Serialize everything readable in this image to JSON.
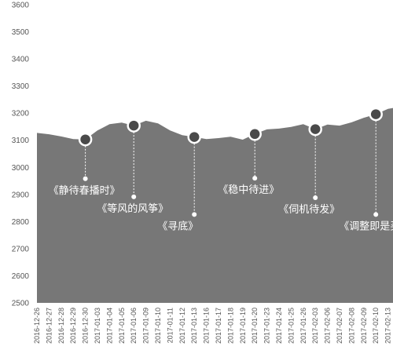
{
  "chart_data": {
    "type": "area",
    "ylim": [
      2500,
      3600
    ],
    "yticks": [
      2500,
      2600,
      2700,
      2800,
      2900,
      3000,
      3100,
      3200,
      3300,
      3400,
      3500,
      3600
    ],
    "grid": "none",
    "legend": "none",
    "colors": {
      "area": "#777777",
      "marker_fill": "#4a4a4a",
      "marker_stroke": "#ffffff",
      "axis_text": "#555555",
      "annotation_text": "#ffffff"
    },
    "x": [
      "2016-12-26",
      "2016-12-27",
      "2016-12-28",
      "2016-12-29",
      "2016-12-30",
      "2017-01-03",
      "2017-01-04",
      "2017-01-05",
      "2017-01-06",
      "2017-01-09",
      "2017-01-10",
      "2017-01-11",
      "2017-01-12",
      "2017-01-13",
      "2017-01-16",
      "2017-01-17",
      "2017-01-18",
      "2017-01-19",
      "2017-01-20",
      "2017-01-23",
      "2017-01-24",
      "2017-01-25",
      "2017-01-26",
      "2017-02-03",
      "2017-02-06",
      "2017-02-07",
      "2017-02-08",
      "2017-02-09",
      "2017-02-10",
      "2017-02-13"
    ],
    "values": [
      3127,
      3122,
      3114,
      3104,
      3103,
      3136,
      3159,
      3165,
      3154,
      3172,
      3162,
      3136,
      3119,
      3112,
      3104,
      3108,
      3113,
      3102,
      3123,
      3140,
      3143,
      3149,
      3159,
      3141,
      3158,
      3154,
      3166,
      3183,
      3196,
      3216
    ],
    "annotations": [
      {
        "x": "2016-12-30",
        "value": 3103,
        "label": "《静待春播时》",
        "label_value": 2958
      },
      {
        "x": "2017-01-06",
        "value": 3154,
        "label": "《等风的风筝》",
        "label_value": 2891
      },
      {
        "x": "2017-01-13",
        "value": 3112,
        "label": "《寻底》",
        "label_value": 2826
      },
      {
        "x": "2017-01-20",
        "value": 3123,
        "label": "《稳中待进》",
        "label_value": 2960
      },
      {
        "x": "2017-02-03",
        "value": 3141,
        "label": "《伺机待发》",
        "label_value": 2888
      },
      {
        "x": "2017-02-10",
        "value": 3196,
        "label": "《调整即是买",
        "label_value": 2826
      }
    ]
  }
}
